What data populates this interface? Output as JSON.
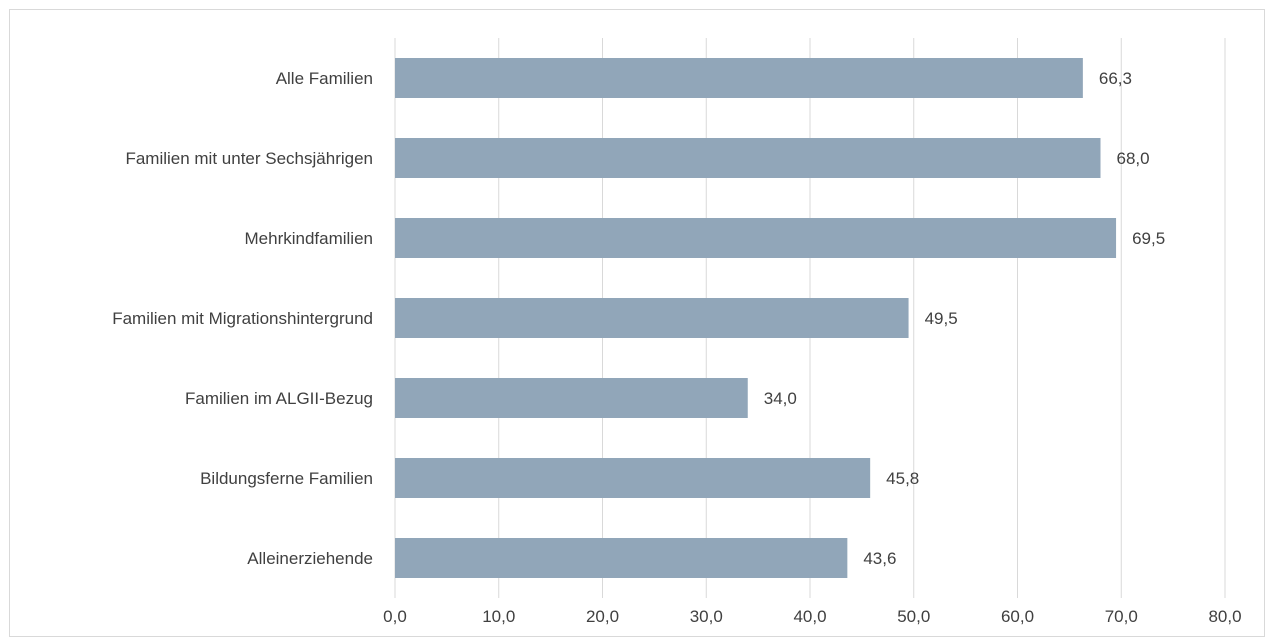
{
  "chart_data": {
    "type": "bar",
    "orientation": "horizontal",
    "categories": [
      "Alle Familien",
      "Familien mit unter Sechsjährigen",
      "Mehrkindfamilien",
      "Familien mit Migrationshintergrund",
      "Familien im ALGII-Bezug",
      "Bildungsferne Familien",
      "Alleinerziehende"
    ],
    "values": [
      66.3,
      68.0,
      69.5,
      49.5,
      34.0,
      45.8,
      43.6
    ],
    "value_labels": [
      "66,3",
      "68,0",
      "69,5",
      "49,5",
      "34,0",
      "45,8",
      "43,6"
    ],
    "xlim": [
      0,
      80
    ],
    "x_ticks": [
      0,
      10,
      20,
      30,
      40,
      50,
      60,
      70,
      80
    ],
    "x_tick_labels": [
      "0,0",
      "10,0",
      "20,0",
      "30,0",
      "40,0",
      "50,0",
      "60,0",
      "70,0",
      "80,0"
    ],
    "grid": "vertical",
    "legend": "none",
    "colors": {
      "bar": "#91a6b9",
      "grid": "#d9d9d9",
      "text": "#404040",
      "frame": "#d9d9d9"
    }
  }
}
